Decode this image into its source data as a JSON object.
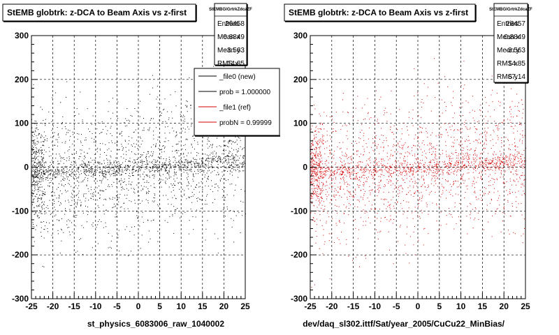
{
  "chart_data": [
    {
      "type": "scatter",
      "title": "StEMB globtrk: z-DCA to Beam Axis vs z-first",
      "xlabel": "st_physics_6083006_raw_1040002",
      "xlim": [
        -25,
        25
      ],
      "ylim": [
        -300,
        300
      ],
      "x_ticks": [
        "-25",
        "-20",
        "-15",
        "-10",
        "-5",
        "0",
        "5",
        "10",
        "15",
        "20",
        "25"
      ],
      "y_ticks": [
        "300",
        "200",
        "100",
        "0",
        "-100",
        "-200",
        "-300"
      ],
      "grid": true,
      "marker_color": "#000000",
      "stats": {
        "header": "StEMBGlGrtrkZdcaZF",
        "rows": [
          {
            "label": "Entries",
            "value": "26458"
          },
          {
            "label": "Mean x",
            "value": "0.8849"
          },
          {
            "label": "Mean y",
            "value": "-3.563"
          },
          {
            "label": "RMS x",
            "value": "14.85"
          }
        ]
      },
      "legend": {
        "placement": "top-right",
        "entries": [
          {
            "label": "_file0 (new)",
            "color": "#000000"
          },
          {
            "label": "prob = 1.000000",
            "color": "#000000"
          },
          {
            "label": "_file1 (ref)",
            "color": "#d40000"
          },
          {
            "label": "probN = 0.99999",
            "color": "#d40000"
          }
        ]
      }
    },
    {
      "type": "scatter",
      "title": "StEMB globtrk: z-DCA to Beam Axis vs z-first",
      "xlabel": "dev/daq_sl302.ittf/Sat/year_2005/CuCu22_MinBias/",
      "xlim": [
        -25,
        25
      ],
      "ylim": [
        -300,
        300
      ],
      "x_ticks": [
        "-25",
        "-20",
        "-15",
        "-10",
        "-5",
        "0",
        "5",
        "10",
        "15",
        "20",
        "25"
      ],
      "y_ticks": [
        "300",
        "200",
        "100",
        "0",
        "-100",
        "-200",
        "-300"
      ],
      "grid": true,
      "marker_color": "#d40000",
      "stats": {
        "header": "StEMBGlGrtrkZdcaZF",
        "rows": [
          {
            "label": "Entries",
            "value": "26457"
          },
          {
            "label": "Mean x",
            "value": "0.8849"
          },
          {
            "label": "Mean y",
            "value": "-3.563"
          },
          {
            "label": "RMS x",
            "value": "14.85"
          },
          {
            "label": "RMS y",
            "value": "67.14"
          }
        ]
      }
    }
  ]
}
